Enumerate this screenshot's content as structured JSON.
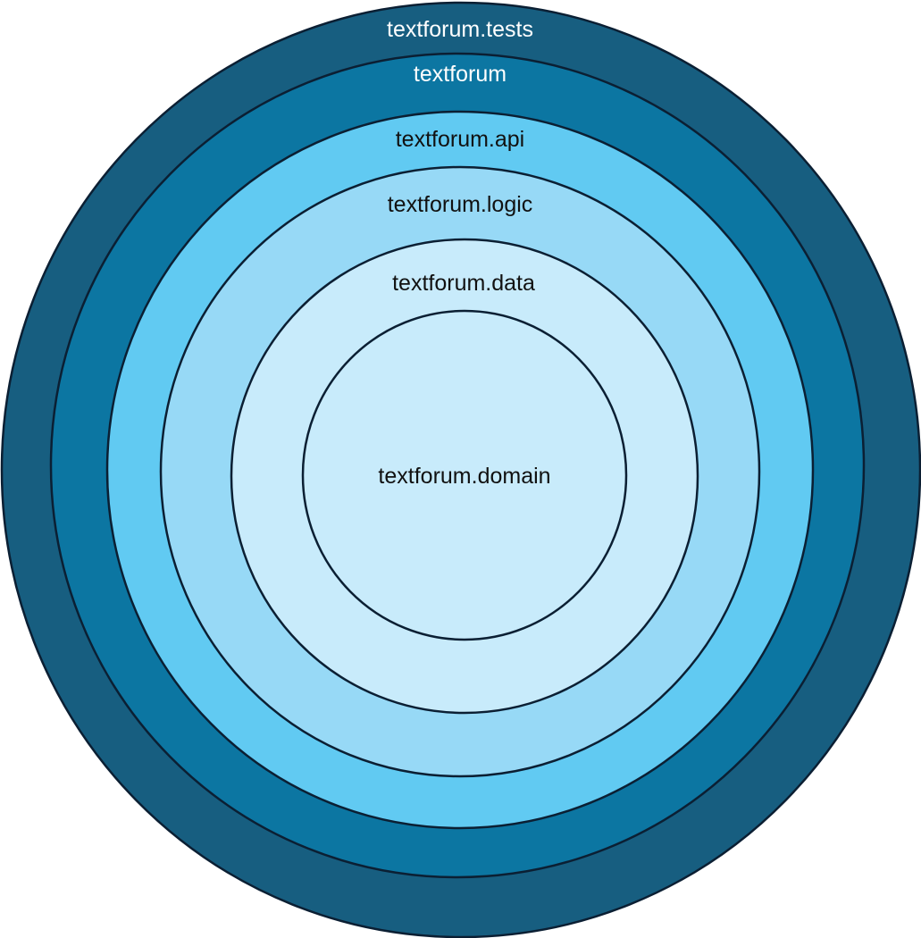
{
  "layers": [
    {
      "label": "textforum.tests",
      "fill": "#175e80",
      "text_color": "#ffffff"
    },
    {
      "label": "textforum",
      "fill": "#0c76a2",
      "text_color": "#ffffff"
    },
    {
      "label": "textforum.api",
      "fill": "#61caf2",
      "text_color": "#111111"
    },
    {
      "label": "textforum.logic",
      "fill": "#97d9f6",
      "text_color": "#111111"
    },
    {
      "label": "textforum.data",
      "fill": "#c8ebfb",
      "text_color": "#111111"
    },
    {
      "label": "textforum.domain",
      "fill": "#c8ebfb",
      "text_color": "#111111"
    }
  ],
  "outline_color": "#0b1f33"
}
